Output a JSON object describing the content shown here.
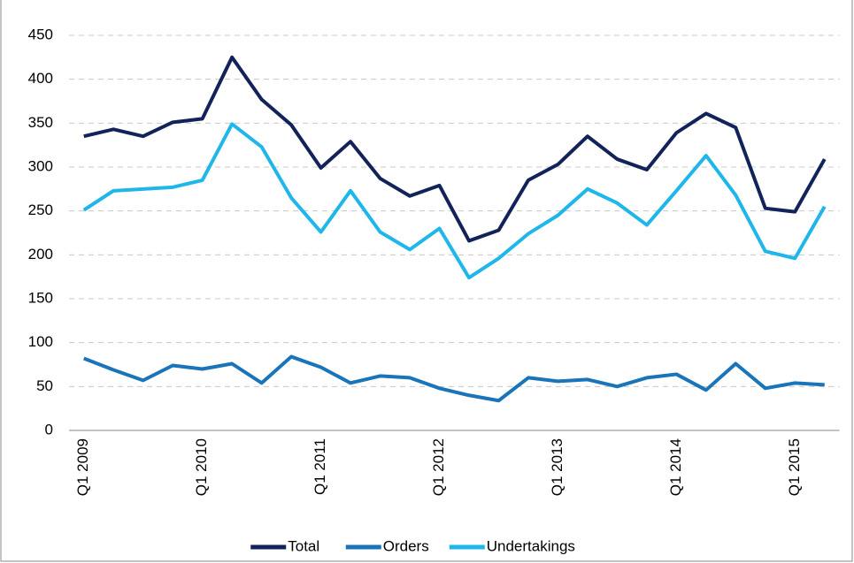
{
  "chart_data": {
    "type": "line",
    "categories": [
      "Q1 2009",
      null,
      null,
      null,
      "Q1 2010",
      null,
      null,
      null,
      "Q1 2011",
      null,
      null,
      null,
      "Q1 2012",
      null,
      null,
      null,
      "Q1 2013",
      null,
      null,
      null,
      "Q1 2014",
      null,
      null,
      null,
      "Q1 2015",
      null
    ],
    "series": [
      {
        "name": "Total",
        "color": "#12235a",
        "values": [
          335,
          343,
          335,
          351,
          355,
          425,
          377,
          348,
          299,
          329,
          287,
          267,
          279,
          216,
          228,
          285,
          303,
          335,
          309,
          297,
          339,
          361,
          345,
          253,
          249,
          309
        ]
      },
      {
        "name": "Orders",
        "color": "#1a74b9",
        "values": [
          82,
          69,
          57,
          74,
          70,
          76,
          54,
          84,
          72,
          54,
          62,
          60,
          48,
          40,
          34,
          60,
          56,
          58,
          50,
          60,
          64,
          46,
          76,
          48,
          54,
          52
        ]
      },
      {
        "name": "Undertakings",
        "color": "#1fb6ea",
        "values": [
          251,
          273,
          275,
          277,
          285,
          349,
          323,
          265,
          226,
          273,
          226,
          206,
          230,
          174,
          196,
          224,
          245,
          275,
          259,
          234,
          273,
          313,
          268,
          204,
          196,
          255
        ]
      }
    ],
    "ylim": [
      0,
      450
    ],
    "yticks": [
      0,
      50,
      100,
      150,
      200,
      250,
      300,
      350,
      400,
      450
    ],
    "grid": true,
    "legend": "bottom"
  }
}
